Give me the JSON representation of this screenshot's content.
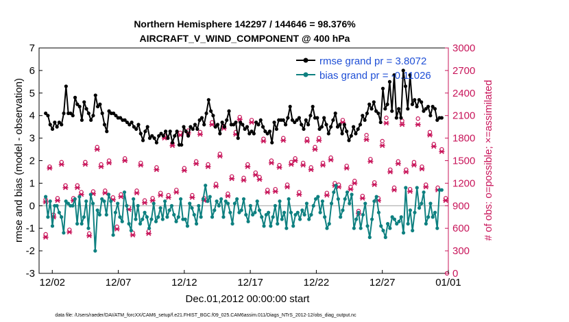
{
  "title_line1": "Northern Hemisphere 142297 / 144646 = 98.376%",
  "title_line2": "AIRCRAFT_V_WIND_COMPONENT @ 400 hPa",
  "footer_text": "data file: /Users/raeder/DAI/ATM_forcXX/CAM6_setup/f.e21.FHIST_BGC.f09_025.CAM6assim.011/Diags_NTrS_2012-12/obs_diag_output.nc",
  "colors": {
    "rmse": "#000000",
    "bias": "#0e8080",
    "obs": "#c8155a",
    "zero_line": "#a0a0a0"
  },
  "chart_data": {
    "type": "line",
    "xlabel": "Dec.01,2012 00:00:00 start",
    "ylabel_left": "rmse and bias (model - observation)",
    "ylabel_right": "# of obs: o=possible; ×=assimilated",
    "xlim": [
      0,
      31
    ],
    "ylim_left": [
      -3,
      7
    ],
    "ylim_right": [
      0,
      3000
    ],
    "x_ticks": [
      {
        "x": 1,
        "label": "12/02"
      },
      {
        "x": 6,
        "label": "12/07"
      },
      {
        "x": 11,
        "label": "12/12"
      },
      {
        "x": 16,
        "label": "12/17"
      },
      {
        "x": 21,
        "label": "12/22"
      },
      {
        "x": 26,
        "label": "12/27"
      },
      {
        "x": 31,
        "label": "01/01"
      }
    ],
    "y_ticks_left": [
      -3,
      -2,
      -1,
      0,
      1,
      2,
      3,
      4,
      5,
      6,
      7
    ],
    "y_ticks_right": [
      0,
      300,
      600,
      900,
      1200,
      1500,
      1800,
      2100,
      2400,
      2700,
      3000
    ],
    "legend_position": "top-right",
    "series": [
      {
        "name": "rmse grand pr = 3.8072",
        "axis": "left",
        "values": [
          4.1,
          4.0,
          3.6,
          3.4,
          3.7,
          3.5,
          3.7,
          3.6,
          4.1,
          5.3,
          4.1,
          4.1,
          4.0,
          4.8,
          4.5,
          4.4,
          3.8,
          4.6,
          4.3,
          4.1,
          3.8,
          4.0,
          4.9,
          4.4,
          4.5,
          4.1,
          3.6,
          3.3,
          4.2,
          4.1,
          4.1,
          4.0,
          3.9,
          3.9,
          3.8,
          3.8,
          3.7,
          3.6,
          3.7,
          3.5,
          3.4,
          3.6,
          3.2,
          2.9,
          3.3,
          3.5,
          3.0,
          3.1,
          3.0,
          2.8,
          3.1,
          3.2,
          3.1,
          3.3,
          3.0,
          3.3,
          2.8,
          3.1,
          3.3,
          2.7,
          2.7,
          3.5,
          3.3,
          3.1,
          3.5,
          3.4,
          3.6,
          3.4,
          3.8,
          3.9,
          3.6,
          4.1,
          4.7,
          4.2,
          4.0,
          3.5,
          3.6,
          3.2,
          3.7,
          3.5,
          3.8,
          4.2,
          3.6,
          3.6,
          3.7,
          3.0,
          3.7,
          3.6,
          3.4,
          3.5,
          3.2,
          3.3,
          3.2,
          3.7,
          3.6,
          3.8,
          3.5,
          3.3,
          3.2,
          3.3,
          2.8,
          3.7,
          3.4,
          3.8,
          3.8,
          3.8,
          3.6,
          3.9,
          4.4,
          3.8,
          3.7,
          3.8,
          3.9,
          3.6,
          3.4,
          3.8,
          3.6,
          4.0,
          4.4,
          3.9,
          3.9,
          3.4,
          3.5,
          3.9,
          3.6,
          3.2,
          3.5,
          3.8,
          4.1,
          3.5,
          3.6,
          3.2,
          3.6,
          3.3,
          2.9,
          3.1,
          3.5,
          3.2,
          3.4,
          3.6,
          4.0,
          3.8,
          4.1,
          4.5,
          4.3,
          4.6,
          4.2,
          4.1,
          3.7,
          5.2,
          4.3,
          4.5,
          5.5,
          4.2,
          5.8,
          3.9,
          4.3,
          3.9,
          6.0,
          5.3,
          4.3,
          5.8,
          4.5,
          4.7,
          4.4,
          4.7,
          4.6,
          4.2,
          4.3,
          4.4,
          4.0,
          4.4,
          4.3,
          3.8,
          3.9,
          3.9
        ]
      },
      {
        "name": "bias grand pr = -0.11026",
        "axis": "left",
        "values": [
          0.4,
          -0.5,
          0.2,
          -0.9,
          0.0,
          0.0,
          -0.3,
          -0.5,
          -1.2,
          0.2,
          0.1,
          0.0,
          0.0,
          0.3,
          -0.8,
          0.4,
          -0.8,
          -0.5,
          0.2,
          -1.0,
          0.5,
          0.1,
          -2.0,
          -0.2,
          -0.4,
          0.3,
          0.2,
          -0.4,
          0.5,
          0.2,
          -1.3,
          -0.3,
          0.1,
          -0.5,
          -0.7,
          0.6,
          0.0,
          -0.8,
          -1.1,
          0.3,
          -0.6,
          0.0,
          -0.8,
          -0.6,
          -0.3,
          -0.5,
          -1.0,
          -0.6,
          0.1,
          -0.7,
          -0.5,
          -0.1,
          -0.6,
          0.2,
          -0.5,
          -0.2,
          0.0,
          -0.4,
          -0.7,
          -0.5,
          0.3,
          -0.6,
          -0.6,
          -0.9,
          0.1,
          -0.1,
          -0.4,
          -0.8,
          0.0,
          -0.5,
          0.3,
          0.9,
          0.2,
          0.4,
          -0.5,
          -0.2,
          0.2,
          0.0,
          0.3,
          -0.5,
          0.2,
          0.1,
          -0.3,
          -0.8,
          0.1,
          0.3,
          -0.3,
          -0.2,
          0.3,
          -0.4,
          -0.7,
          0.0,
          -0.4,
          -0.3,
          0.2,
          -0.2,
          -0.5,
          -0.9,
          -0.4,
          -0.3,
          -0.9,
          -0.5,
          0.0,
          -0.8,
          0.2,
          -0.6,
          -0.3,
          -1.0,
          0.3,
          -0.3,
          -0.9,
          -0.4,
          -0.3,
          -0.6,
          -0.2,
          -0.4,
          0.1,
          -0.6,
          -0.4,
          0.0,
          0.3,
          0.4,
          -0.3,
          0.2,
          -0.5,
          -1.0,
          -0.8,
          0.1,
          0.6,
          0.9,
          0.3,
          -0.5,
          -0.2,
          0.3,
          0.6,
          0.1,
          0.5,
          -1.0,
          -0.6,
          -0.3,
          -1.0,
          -0.4,
          0.1,
          -0.9,
          -1.4,
          -0.6,
          0.2,
          0.4,
          -0.3,
          -0.9,
          -1.1,
          -1.4,
          -0.8,
          -1.0,
          -0.5,
          -0.6,
          -0.8,
          -0.7,
          -0.5,
          -1.2,
          0.8,
          -0.8,
          -0.2,
          -1.1,
          -0.3,
          0.8,
          -0.1,
          0.1,
          0.6,
          -0.8,
          -0.5,
          0.1,
          -0.5,
          -0.3,
          -1.0,
          0.7,
          0.7
        ]
      }
    ],
    "obs_possible": [
      {
        "x": 0.5,
        "y": 980
      },
      {
        "x": 0.5,
        "y": 520
      },
      {
        "x": 0.8,
        "y": 1420
      },
      {
        "x": 1.1,
        "y": 780
      },
      {
        "x": 1.4,
        "y": 1000
      },
      {
        "x": 1.7,
        "y": 1480
      },
      {
        "x": 2.0,
        "y": 1170
      },
      {
        "x": 2.3,
        "y": 580
      },
      {
        "x": 2.6,
        "y": 1000
      },
      {
        "x": 2.9,
        "y": 1170
      },
      {
        "x": 3.2,
        "y": 1080
      },
      {
        "x": 3.5,
        "y": 1480
      },
      {
        "x": 3.8,
        "y": 530
      },
      {
        "x": 4.1,
        "y": 1090
      },
      {
        "x": 4.4,
        "y": 1680
      },
      {
        "x": 4.7,
        "y": 1450
      },
      {
        "x": 5.0,
        "y": 1100
      },
      {
        "x": 5.3,
        "y": 1500
      },
      {
        "x": 5.6,
        "y": 1010
      },
      {
        "x": 5.9,
        "y": 620
      },
      {
        "x": 6.2,
        "y": 1050
      },
      {
        "x": 6.5,
        "y": 1530
      },
      {
        "x": 6.8,
        "y": 880
      },
      {
        "x": 7.1,
        "y": 540
      },
      {
        "x": 7.4,
        "y": 1100
      },
      {
        "x": 7.7,
        "y": 1470
      },
      {
        "x": 8.0,
        "y": 970
      },
      {
        "x": 8.3,
        "y": 560
      },
      {
        "x": 8.6,
        "y": 1000
      },
      {
        "x": 8.9,
        "y": 1410
      },
      {
        "x": 9.2,
        "y": 1070
      },
      {
        "x": 9.5,
        "y": 1830
      },
      {
        "x": 9.8,
        "y": 1040
      },
      {
        "x": 10.1,
        "y": 1730
      },
      {
        "x": 10.4,
        "y": 1110
      },
      {
        "x": 10.7,
        "y": 1870
      },
      {
        "x": 11.0,
        "y": 1400
      },
      {
        "x": 11.3,
        "y": 1900
      },
      {
        "x": 11.6,
        "y": 1040
      },
      {
        "x": 11.9,
        "y": 1490
      },
      {
        "x": 12.2,
        "y": 1880
      },
      {
        "x": 12.5,
        "y": 1000
      },
      {
        "x": 12.8,
        "y": 1450
      },
      {
        "x": 13.1,
        "y": 2010
      },
      {
        "x": 13.4,
        "y": 1190
      },
      {
        "x": 13.7,
        "y": 1590
      },
      {
        "x": 14.0,
        "y": 1960
      },
      {
        "x": 14.3,
        "y": 1060
      },
      {
        "x": 14.6,
        "y": 1290
      },
      {
        "x": 14.9,
        "y": 1880
      },
      {
        "x": 15.2,
        "y": 2080
      },
      {
        "x": 15.5,
        "y": 1270
      },
      {
        "x": 15.8,
        "y": 1450
      },
      {
        "x": 16.1,
        "y": 2040
      },
      {
        "x": 16.4,
        "y": 1340
      },
      {
        "x": 16.7,
        "y": 1280
      },
      {
        "x": 17.0,
        "y": 1790
      },
      {
        "x": 17.3,
        "y": 1110
      },
      {
        "x": 17.6,
        "y": 1500
      },
      {
        "x": 17.9,
        "y": 1120
      },
      {
        "x": 18.2,
        "y": 1440
      },
      {
        "x": 18.5,
        "y": 1800
      },
      {
        "x": 18.8,
        "y": 1180
      },
      {
        "x": 19.1,
        "y": 1480
      },
      {
        "x": 19.4,
        "y": 1530
      },
      {
        "x": 19.7,
        "y": 1080
      },
      {
        "x": 20.0,
        "y": 1470
      },
      {
        "x": 20.3,
        "y": 1790
      },
      {
        "x": 20.6,
        "y": 1410
      },
      {
        "x": 20.9,
        "y": 1680
      },
      {
        "x": 21.2,
        "y": 1800
      },
      {
        "x": 21.5,
        "y": 1470
      },
      {
        "x": 21.8,
        "y": 1070
      },
      {
        "x": 22.1,
        "y": 1540
      },
      {
        "x": 22.4,
        "y": 1200
      },
      {
        "x": 22.7,
        "y": 1180
      },
      {
        "x": 23.0,
        "y": 2040
      },
      {
        "x": 23.3,
        "y": 1430
      },
      {
        "x": 23.6,
        "y": 1150
      },
      {
        "x": 23.9,
        "y": 1230
      },
      {
        "x": 24.2,
        "y": 830
      },
      {
        "x": 24.5,
        "y": 1030
      },
      {
        "x": 24.8,
        "y": 1840
      },
      {
        "x": 25.1,
        "y": 1520
      },
      {
        "x": 25.4,
        "y": 1210
      },
      {
        "x": 25.7,
        "y": 1000
      },
      {
        "x": 26.0,
        "y": 1760
      },
      {
        "x": 26.3,
        "y": 2070
      },
      {
        "x": 26.6,
        "y": 1380
      },
      {
        "x": 26.9,
        "y": 1140
      },
      {
        "x": 27.2,
        "y": 1490
      },
      {
        "x": 27.5,
        "y": 2030
      },
      {
        "x": 27.8,
        "y": 1380
      },
      {
        "x": 28.1,
        "y": 1120
      },
      {
        "x": 28.4,
        "y": 1480
      },
      {
        "x": 28.7,
        "y": 2060
      },
      {
        "x": 29.0,
        "y": 1420
      },
      {
        "x": 29.3,
        "y": 1180
      },
      {
        "x": 29.6,
        "y": 1880
      },
      {
        "x": 29.9,
        "y": 1720
      },
      {
        "x": 30.2,
        "y": 1140
      },
      {
        "x": 30.5,
        "y": 1650
      },
      {
        "x": 30.8,
        "y": 1000
      },
      {
        "x": 30.9,
        "y": 0
      }
    ],
    "obs_assimilated": [
      {
        "x": 0.5,
        "y": 950
      },
      {
        "x": 0.5,
        "y": 480
      },
      {
        "x": 0.8,
        "y": 1400
      },
      {
        "x": 1.1,
        "y": 750
      },
      {
        "x": 1.4,
        "y": 970
      },
      {
        "x": 1.7,
        "y": 1450
      },
      {
        "x": 2.0,
        "y": 1140
      },
      {
        "x": 2.3,
        "y": 550
      },
      {
        "x": 2.6,
        "y": 970
      },
      {
        "x": 2.9,
        "y": 1140
      },
      {
        "x": 3.2,
        "y": 1050
      },
      {
        "x": 3.5,
        "y": 1450
      },
      {
        "x": 3.8,
        "y": 500
      },
      {
        "x": 4.1,
        "y": 1060
      },
      {
        "x": 4.4,
        "y": 1650
      },
      {
        "x": 4.7,
        "y": 1420
      },
      {
        "x": 5.0,
        "y": 1070
      },
      {
        "x": 5.3,
        "y": 1470
      },
      {
        "x": 5.6,
        "y": 980
      },
      {
        "x": 5.9,
        "y": 590
      },
      {
        "x": 6.2,
        "y": 1020
      },
      {
        "x": 6.5,
        "y": 1500
      },
      {
        "x": 6.8,
        "y": 850
      },
      {
        "x": 7.1,
        "y": 510
      },
      {
        "x": 7.4,
        "y": 1070
      },
      {
        "x": 7.7,
        "y": 1440
      },
      {
        "x": 8.0,
        "y": 940
      },
      {
        "x": 8.3,
        "y": 530
      },
      {
        "x": 8.6,
        "y": 970
      },
      {
        "x": 8.9,
        "y": 1380
      },
      {
        "x": 9.2,
        "y": 1040
      },
      {
        "x": 9.5,
        "y": 1800
      },
      {
        "x": 9.8,
        "y": 1010
      },
      {
        "x": 10.1,
        "y": 1700
      },
      {
        "x": 10.4,
        "y": 1080
      },
      {
        "x": 10.7,
        "y": 1840
      },
      {
        "x": 11.0,
        "y": 1370
      },
      {
        "x": 11.3,
        "y": 1870
      },
      {
        "x": 11.6,
        "y": 1010
      },
      {
        "x": 11.9,
        "y": 1460
      },
      {
        "x": 12.2,
        "y": 1850
      },
      {
        "x": 12.5,
        "y": 970
      },
      {
        "x": 12.8,
        "y": 1420
      },
      {
        "x": 13.1,
        "y": 1980
      },
      {
        "x": 13.4,
        "y": 1160
      },
      {
        "x": 13.7,
        "y": 1560
      },
      {
        "x": 14.0,
        "y": 1930
      },
      {
        "x": 14.3,
        "y": 1030
      },
      {
        "x": 14.6,
        "y": 1260
      },
      {
        "x": 14.9,
        "y": 1850
      },
      {
        "x": 15.2,
        "y": 2050
      },
      {
        "x": 15.5,
        "y": 1240
      },
      {
        "x": 15.8,
        "y": 1420
      },
      {
        "x": 16.1,
        "y": 2010
      },
      {
        "x": 16.4,
        "y": 1310
      },
      {
        "x": 16.7,
        "y": 1250
      },
      {
        "x": 17.0,
        "y": 1760
      },
      {
        "x": 17.3,
        "y": 1080
      },
      {
        "x": 17.6,
        "y": 1470
      },
      {
        "x": 17.9,
        "y": 1090
      },
      {
        "x": 18.2,
        "y": 1410
      },
      {
        "x": 18.5,
        "y": 1770
      },
      {
        "x": 18.8,
        "y": 1150
      },
      {
        "x": 19.1,
        "y": 1450
      },
      {
        "x": 19.4,
        "y": 1500
      },
      {
        "x": 19.7,
        "y": 1050
      },
      {
        "x": 20.0,
        "y": 1440
      },
      {
        "x": 20.3,
        "y": 1760
      },
      {
        "x": 20.6,
        "y": 1380
      },
      {
        "x": 20.9,
        "y": 1650
      },
      {
        "x": 21.2,
        "y": 1770
      },
      {
        "x": 21.5,
        "y": 1440
      },
      {
        "x": 21.8,
        "y": 1040
      },
      {
        "x": 22.1,
        "y": 1510
      },
      {
        "x": 22.4,
        "y": 1170
      },
      {
        "x": 22.7,
        "y": 1150
      },
      {
        "x": 23.0,
        "y": 2010
      },
      {
        "x": 23.3,
        "y": 1400
      },
      {
        "x": 23.6,
        "y": 1120
      },
      {
        "x": 23.9,
        "y": 1200
      },
      {
        "x": 24.2,
        "y": 800
      },
      {
        "x": 24.5,
        "y": 1000
      },
      {
        "x": 24.8,
        "y": 1780
      },
      {
        "x": 25.1,
        "y": 1490
      },
      {
        "x": 25.4,
        "y": 1180
      },
      {
        "x": 25.7,
        "y": 970
      },
      {
        "x": 26.0,
        "y": 1700
      },
      {
        "x": 26.3,
        "y": 2000
      },
      {
        "x": 26.6,
        "y": 1350
      },
      {
        "x": 26.9,
        "y": 1110
      },
      {
        "x": 27.2,
        "y": 1460
      },
      {
        "x": 27.5,
        "y": 1980
      },
      {
        "x": 27.8,
        "y": 1350
      },
      {
        "x": 28.1,
        "y": 1090
      },
      {
        "x": 28.4,
        "y": 1440
      },
      {
        "x": 28.7,
        "y": 1980
      },
      {
        "x": 29.0,
        "y": 1390
      },
      {
        "x": 29.3,
        "y": 1150
      },
      {
        "x": 29.6,
        "y": 1840
      },
      {
        "x": 29.9,
        "y": 1690
      },
      {
        "x": 30.2,
        "y": 1110
      },
      {
        "x": 30.5,
        "y": 1620
      },
      {
        "x": 30.8,
        "y": 970
      }
    ]
  }
}
